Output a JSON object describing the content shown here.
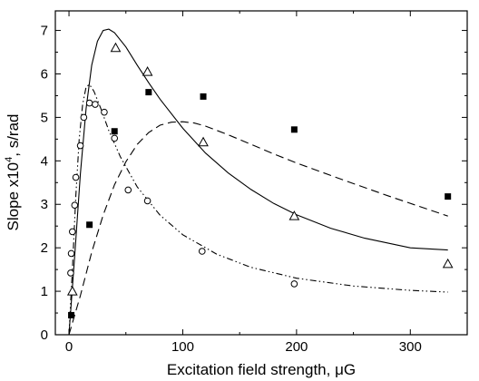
{
  "chart_data": {
    "type": "scatter",
    "title": "",
    "xlabel": "Excitation field strength, μG",
    "ylabel_main": "Slope x10",
    "ylabel_sup": "4",
    "ylabel_unit": ", s/rad",
    "xlim": [
      -12,
      350
    ],
    "ylim": [
      0,
      7.45
    ],
    "xticks": [
      0,
      100,
      200,
      300
    ],
    "yticks": [
      0,
      1,
      2,
      3,
      4,
      5,
      6,
      7
    ],
    "grid": false,
    "legend": "none",
    "series": [
      {
        "marker": "square-filled",
        "points": [
          [
            2,
            0.45
          ],
          [
            18,
            2.53
          ],
          [
            40,
            4.68
          ],
          [
            70,
            5.58
          ],
          [
            118,
            5.48
          ],
          [
            198,
            4.72
          ],
          [
            333,
            3.18
          ]
        ]
      },
      {
        "marker": "triangle-open",
        "points": [
          [
            3,
            1.0
          ],
          [
            41,
            6.6
          ],
          [
            69,
            6.05
          ],
          [
            118,
            4.43
          ],
          [
            198,
            2.73
          ],
          [
            333,
            1.63
          ]
        ]
      },
      {
        "marker": "circle-open",
        "points": [
          [
            1.5,
            1.42
          ],
          [
            2,
            1.87
          ],
          [
            3,
            2.37
          ],
          [
            5,
            2.98
          ],
          [
            6,
            3.62
          ],
          [
            10,
            4.35
          ],
          [
            13,
            5.0
          ],
          [
            18,
            5.33
          ],
          [
            23,
            5.3
          ],
          [
            31,
            5.12
          ],
          [
            40,
            4.52
          ],
          [
            52,
            3.33
          ],
          [
            69,
            3.08
          ],
          [
            117,
            1.92
          ],
          [
            198,
            1.17
          ]
        ]
      }
    ],
    "curves": [
      {
        "style": "solid",
        "points": [
          [
            0,
            0
          ],
          [
            5,
            1.8
          ],
          [
            10,
            3.7
          ],
          [
            15,
            5.2
          ],
          [
            20,
            6.2
          ],
          [
            25,
            6.75
          ],
          [
            30,
            7.0
          ],
          [
            35,
            7.03
          ],
          [
            40,
            6.95
          ],
          [
            50,
            6.62
          ],
          [
            60,
            6.2
          ],
          [
            70,
            5.8
          ],
          [
            80,
            5.42
          ],
          [
            100,
            4.75
          ],
          [
            120,
            4.18
          ],
          [
            140,
            3.72
          ],
          [
            160,
            3.34
          ],
          [
            180,
            3.02
          ],
          [
            200,
            2.76
          ],
          [
            230,
            2.45
          ],
          [
            260,
            2.22
          ],
          [
            300,
            2.0
          ],
          [
            333,
            1.95
          ]
        ]
      },
      {
        "style": "dashed",
        "points": [
          [
            0,
            0
          ],
          [
            10,
            0.9
          ],
          [
            20,
            1.9
          ],
          [
            30,
            2.75
          ],
          [
            40,
            3.45
          ],
          [
            50,
            3.98
          ],
          [
            60,
            4.38
          ],
          [
            70,
            4.65
          ],
          [
            80,
            4.82
          ],
          [
            90,
            4.89
          ],
          [
            100,
            4.9
          ],
          [
            110,
            4.87
          ],
          [
            120,
            4.8
          ],
          [
            140,
            4.6
          ],
          [
            160,
            4.38
          ],
          [
            180,
            4.16
          ],
          [
            200,
            3.95
          ],
          [
            240,
            3.57
          ],
          [
            280,
            3.2
          ],
          [
            333,
            2.73
          ]
        ]
      },
      {
        "style": "dash-dot-dot",
        "points": [
          [
            0,
            0
          ],
          [
            3,
            1.5
          ],
          [
            6,
            3.2
          ],
          [
            9,
            4.5
          ],
          [
            12,
            5.3
          ],
          [
            15,
            5.7
          ],
          [
            18,
            5.76
          ],
          [
            22,
            5.6
          ],
          [
            28,
            5.2
          ],
          [
            35,
            4.7
          ],
          [
            45,
            4.1
          ],
          [
            60,
            3.4
          ],
          [
            80,
            2.75
          ],
          [
            100,
            2.3
          ],
          [
            130,
            1.85
          ],
          [
            160,
            1.55
          ],
          [
            200,
            1.3
          ],
          [
            250,
            1.12
          ],
          [
            300,
            1.02
          ],
          [
            333,
            0.98
          ]
        ]
      }
    ]
  }
}
